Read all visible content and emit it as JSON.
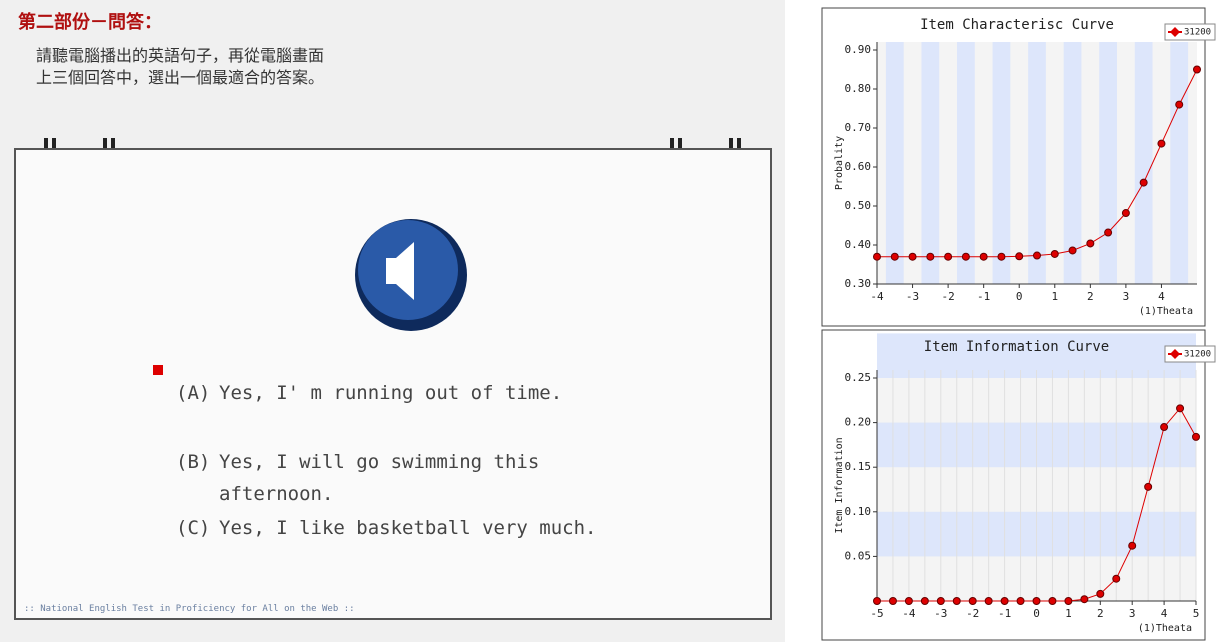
{
  "quiz": {
    "heading": "第二部份－問答：",
    "instructions": [
      "請聽電腦播出的英語句子，再從電腦畫面",
      "上三個回答中，選出一個最適合的答案。"
    ],
    "options": [
      {
        "letter": "(A)",
        "text": "Yes, I' m running out of time."
      },
      {
        "letter": "(B)",
        "text": "Yes, I will go swimming this afternoon."
      },
      {
        "letter": "(C)",
        "text": "Yes, I like basketball very much."
      }
    ],
    "footer": ":: National English Test in Proficiency for All on the Web ::"
  },
  "chart_data": [
    {
      "type": "line",
      "title": "Item Characterisc Curve",
      "xlabel": "(1)Theata",
      "ylabel": "Probality",
      "x": [
        -4,
        -3.5,
        -3,
        -2.5,
        -2,
        -1.5,
        -1,
        -0.5,
        0,
        0.5,
        1,
        1.5,
        2,
        2.5,
        3,
        3.5,
        4,
        4.5,
        5
      ],
      "series": [
        {
          "name": "31200",
          "color": "#dd0000",
          "values": [
            0.37,
            0.37,
            0.37,
            0.37,
            0.37,
            0.37,
            0.37,
            0.37,
            0.371,
            0.373,
            0.377,
            0.386,
            0.404,
            0.432,
            0.482,
            0.56,
            0.66,
            0.76,
            0.85
          ]
        }
      ],
      "xlim": [
        -4,
        5
      ],
      "ylim": [
        0.3,
        0.9
      ],
      "xticks": [
        -4,
        -3,
        -2,
        -1,
        0,
        1,
        2,
        3,
        4
      ],
      "yticks": [
        {
          "value": 0.3,
          "label": "0.30"
        },
        {
          "value": 0.4,
          "label": "0.40"
        },
        {
          "value": 0.5,
          "label": "0.50"
        },
        {
          "value": 0.6,
          "label": "0.60"
        },
        {
          "value": 0.7,
          "label": "0.70"
        },
        {
          "value": 0.8,
          "label": "0.80"
        },
        {
          "value": 0.9,
          "label": "0.90"
        }
      ],
      "stripes": "vertical",
      "legend": "top-right"
    },
    {
      "type": "line",
      "title": "Item Information Curve",
      "xlabel": "(1)Theata",
      "ylabel": "Item Information",
      "x": [
        -5,
        -4.5,
        -4,
        -3.5,
        -3,
        -2.5,
        -2,
        -1.5,
        -1,
        -0.5,
        0,
        0.5,
        1,
        1.5,
        2,
        2.5,
        3,
        3.5,
        4,
        4.5,
        5
      ],
      "series": [
        {
          "name": "31200",
          "color": "#dd0000",
          "values": [
            0,
            0,
            0,
            0,
            0,
            0,
            0,
            0,
            0,
            0,
            0,
            0,
            0,
            0.002,
            0.008,
            0.025,
            0.062,
            0.128,
            0.195,
            0.216,
            0.184
          ]
        }
      ],
      "xlim": [
        -5,
        5
      ],
      "ylim": [
        0,
        0.25
      ],
      "xticks": [
        -5,
        -4,
        -3,
        -2,
        -1,
        0,
        1,
        2,
        3,
        4,
        5
      ],
      "yticks": [
        {
          "value": 0.05,
          "label": "0.05"
        },
        {
          "value": 0.1,
          "label": "0.10"
        },
        {
          "value": 0.15,
          "label": "0.15"
        },
        {
          "value": 0.2,
          "label": "0.20"
        },
        {
          "value": 0.25,
          "label": "0.25"
        }
      ],
      "stripes": "horizontal",
      "legend": "top-right"
    }
  ]
}
